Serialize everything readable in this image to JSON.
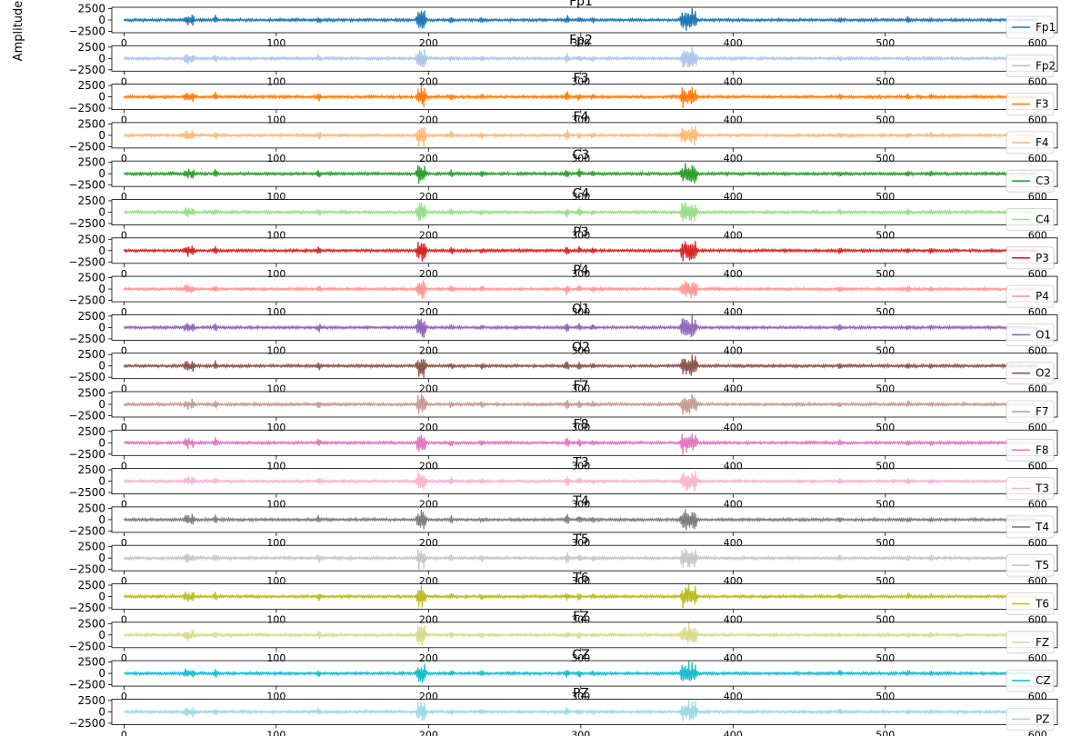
{
  "figure": {
    "ylabel": "Amplitude"
  },
  "chart_data": {
    "type": "line",
    "xlim": [
      -8,
      613
    ],
    "ylim": [
      -2800,
      2800
    ],
    "x_ticks": [
      0,
      100,
      200,
      300,
      400,
      500,
      600
    ],
    "y_ticks": [
      -2500,
      0,
      2500
    ],
    "y_tick_labels": [
      "−2500",
      "0",
      "2500"
    ],
    "ylabel": "Amplitude",
    "grid": false,
    "legend_placement": "right",
    "baseline_noise_amplitude": 350,
    "bursts": [
      {
        "x": 40.5,
        "amp": 1200
      },
      {
        "x": 42.0,
        "amp": 1500
      },
      {
        "x": 45.0,
        "amp": 1500
      },
      {
        "x": 60.0,
        "amp": 1300
      },
      {
        "x": 128.0,
        "amp": 1200
      },
      {
        "x": 193.5,
        "amp": 2800
      },
      {
        "x": 195.5,
        "amp": 2800
      },
      {
        "x": 197.0,
        "amp": 2800
      },
      {
        "x": 215.0,
        "amp": 1100
      },
      {
        "x": 235.0,
        "amp": 900
      },
      {
        "x": 291.0,
        "amp": 1500
      },
      {
        "x": 299.0,
        "amp": 1200
      },
      {
        "x": 308.0,
        "amp": 900
      },
      {
        "x": 367.0,
        "amp": 2800
      },
      {
        "x": 369.0,
        "amp": 2800
      },
      {
        "x": 371.0,
        "amp": 2800
      },
      {
        "x": 373.0,
        "amp": 2800
      },
      {
        "x": 375.0,
        "amp": 2800
      },
      {
        "x": 470.0,
        "amp": 900
      },
      {
        "x": 515.0,
        "amp": 900
      },
      {
        "x": 530.0,
        "amp": 800
      }
    ],
    "series": [
      {
        "name": "Fp1",
        "title": "Fp1",
        "color": "#1f77b4"
      },
      {
        "name": "Fp2",
        "title": "Fp2",
        "color": "#aec7e8"
      },
      {
        "name": "F3",
        "title": "F3",
        "color": "#ff7f0e"
      },
      {
        "name": "F4",
        "title": "F4",
        "color": "#ffbb78"
      },
      {
        "name": "C3",
        "title": "C3",
        "color": "#2ca02c"
      },
      {
        "name": "C4",
        "title": "C4",
        "color": "#98df8a"
      },
      {
        "name": "P3",
        "title": "P3",
        "color": "#d62728"
      },
      {
        "name": "P4",
        "title": "P4",
        "color": "#ff9896"
      },
      {
        "name": "O1",
        "title": "O1",
        "color": "#9467bd"
      },
      {
        "name": "O2",
        "title": "O2",
        "color": "#8c564b"
      },
      {
        "name": "F7",
        "title": "F7",
        "color": "#c49c94"
      },
      {
        "name": "F8",
        "title": "F8",
        "color": "#e377c2"
      },
      {
        "name": "T3",
        "title": "T3",
        "color": "#f7b6d2"
      },
      {
        "name": "T4",
        "title": "T4",
        "color": "#7f7f7f"
      },
      {
        "name": "T5",
        "title": "T5",
        "color": "#c7c7c7"
      },
      {
        "name": "T6",
        "title": "T6",
        "color": "#bcbd22"
      },
      {
        "name": "FZ",
        "title": "FZ",
        "color": "#dbdb8d"
      },
      {
        "name": "CZ",
        "title": "CZ",
        "color": "#17becf"
      },
      {
        "name": "PZ",
        "title": "PZ",
        "color": "#9edae5"
      }
    ]
  }
}
